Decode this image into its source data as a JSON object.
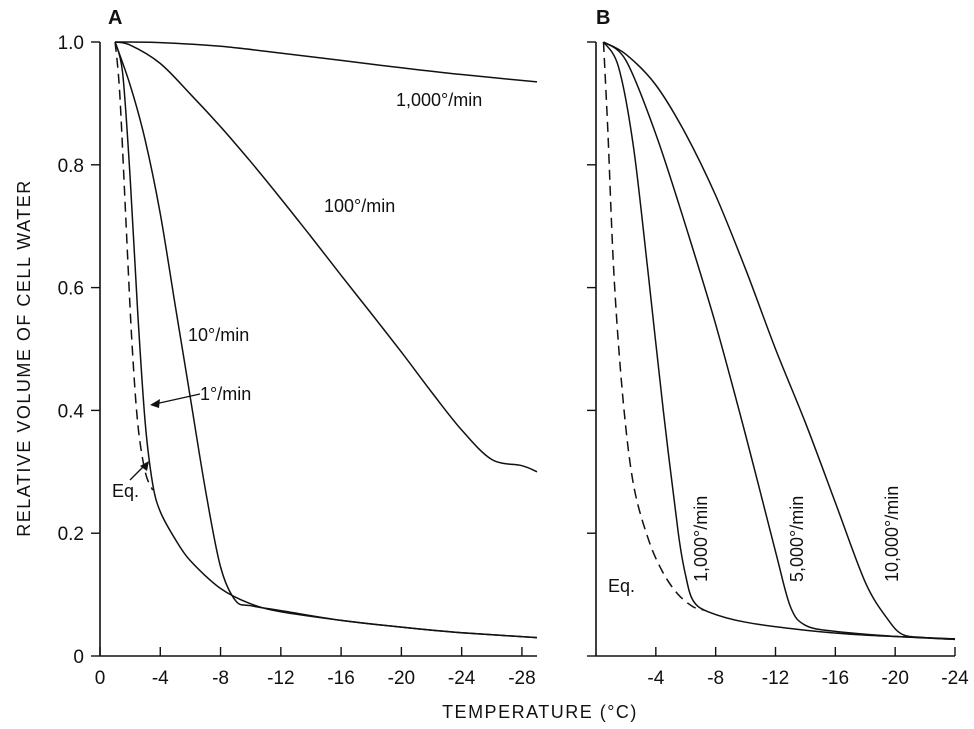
{
  "chart_data": [
    {
      "panel": "A",
      "type": "line",
      "xlabel": "TEMPERATURE (°C)",
      "ylabel": "RELATIVE VOLUME OF CELL WATER",
      "xlim": [
        0,
        -29
      ],
      "ylim": [
        0,
        1.0
      ],
      "x_ticks": [
        0,
        -4,
        -8,
        -12,
        -16,
        -20,
        -24,
        -28
      ],
      "x_tick_labels": [
        "0",
        "-4",
        "-8",
        "-12",
        "-16",
        "-20",
        "-24",
        "-28"
      ],
      "y_ticks": [
        0,
        0.2,
        0.4,
        0.6,
        0.8,
        1.0
      ],
      "y_tick_labels": [
        "0",
        "0.2",
        "0.4",
        "0.6",
        "0.8",
        "1.0"
      ],
      "series": [
        {
          "name": "1,000°/min",
          "style": "solid",
          "x": [
            -1.0,
            -4,
            -8,
            -12,
            -16,
            -20,
            -24,
            -29
          ],
          "y": [
            1.0,
            0.999,
            0.993,
            0.982,
            0.97,
            0.958,
            0.947,
            0.935
          ]
        },
        {
          "name": "100°/min",
          "style": "solid",
          "x": [
            -1.0,
            -2,
            -4,
            -6,
            -8,
            -10,
            -12,
            -14,
            -16,
            -18,
            -20,
            -22,
            -24,
            -26,
            -28,
            -29
          ],
          "y": [
            1.0,
            0.995,
            0.965,
            0.915,
            0.862,
            0.805,
            0.745,
            0.683,
            0.62,
            0.558,
            0.495,
            0.43,
            0.368,
            0.32,
            0.31,
            0.3
          ]
        },
        {
          "name": "10°/min",
          "style": "solid",
          "x": [
            -1.0,
            -2,
            -3,
            -4,
            -5,
            -6,
            -7,
            -8,
            -9,
            -10,
            -12,
            -16,
            -20,
            -24,
            -29
          ],
          "y": [
            1.0,
            0.93,
            0.84,
            0.72,
            0.57,
            0.42,
            0.27,
            0.145,
            0.09,
            0.082,
            0.074,
            0.058,
            0.047,
            0.038,
            0.03
          ]
        },
        {
          "name": "1°/min",
          "style": "solid",
          "x": [
            -1.0,
            -1.5,
            -2,
            -2.5,
            -3,
            -3.5,
            -4,
            -5,
            -6,
            -8,
            -10,
            -12,
            -16,
            -20,
            -24,
            -29
          ],
          "y": [
            1.0,
            0.95,
            0.78,
            0.56,
            0.38,
            0.28,
            0.235,
            0.19,
            0.155,
            0.11,
            0.085,
            0.072,
            0.058,
            0.047,
            0.038,
            0.03
          ]
        },
        {
          "name": "Eq.",
          "style": "dashed",
          "x": [
            -1.0,
            -1.3,
            -1.7,
            -2.1,
            -2.5,
            -3.0,
            -3.5
          ],
          "y": [
            1.0,
            0.92,
            0.72,
            0.52,
            0.38,
            0.3,
            0.27
          ]
        }
      ],
      "annotations": [
        "1,000°/min",
        "100°/min",
        "10°/min",
        "1°/min",
        "Eq."
      ]
    },
    {
      "panel": "B",
      "type": "line",
      "xlim": [
        0,
        -24
      ],
      "ylim": [
        0,
        1.0
      ],
      "x_ticks": [
        -4,
        -8,
        -12,
        -16,
        -20,
        -24
      ],
      "x_tick_labels": [
        "-4",
        "-8",
        "-12",
        "-16",
        "-20",
        "-24"
      ],
      "series": [
        {
          "name": "Eq.",
          "style": "dashed",
          "x": [
            -0.5,
            -0.8,
            -1.2,
            -1.8,
            -2.5,
            -3.5,
            -4.5,
            -5.5,
            -6.5,
            -7.2
          ],
          "y": [
            1.0,
            0.85,
            0.62,
            0.42,
            0.28,
            0.19,
            0.135,
            0.1,
            0.08,
            0.075
          ]
        },
        {
          "name": "1,000°/min",
          "style": "solid",
          "x": [
            -0.5,
            -1.5,
            -2.5,
            -3.5,
            -4.5,
            -5.5,
            -6.0,
            -6.5,
            -7.5,
            -10,
            -14,
            -18,
            -24
          ],
          "y": [
            1.0,
            0.96,
            0.83,
            0.62,
            0.4,
            0.2,
            0.13,
            0.09,
            0.072,
            0.055,
            0.042,
            0.034,
            0.028
          ]
        },
        {
          "name": "5,000°/min",
          "style": "solid",
          "x": [
            -0.5,
            -2,
            -4,
            -6,
            -8,
            -10,
            -12,
            -13,
            -14,
            -16,
            -20,
            -24
          ],
          "y": [
            1.0,
            0.97,
            0.85,
            0.7,
            0.54,
            0.36,
            0.17,
            0.08,
            0.05,
            0.04,
            0.032,
            0.027
          ]
        },
        {
          "name": "10,000°/min",
          "style": "solid",
          "x": [
            -0.5,
            -2,
            -4,
            -6,
            -8,
            -10,
            -12,
            -14,
            -16,
            -18,
            -19.5,
            -20.5,
            -22,
            -24
          ],
          "y": [
            1.0,
            0.98,
            0.93,
            0.85,
            0.75,
            0.63,
            0.5,
            0.38,
            0.25,
            0.12,
            0.06,
            0.035,
            0.03,
            0.027
          ]
        }
      ],
      "annotations": [
        "Eq.",
        "1,000°/min",
        "5,000°/min",
        "10,000°/min"
      ]
    }
  ]
}
